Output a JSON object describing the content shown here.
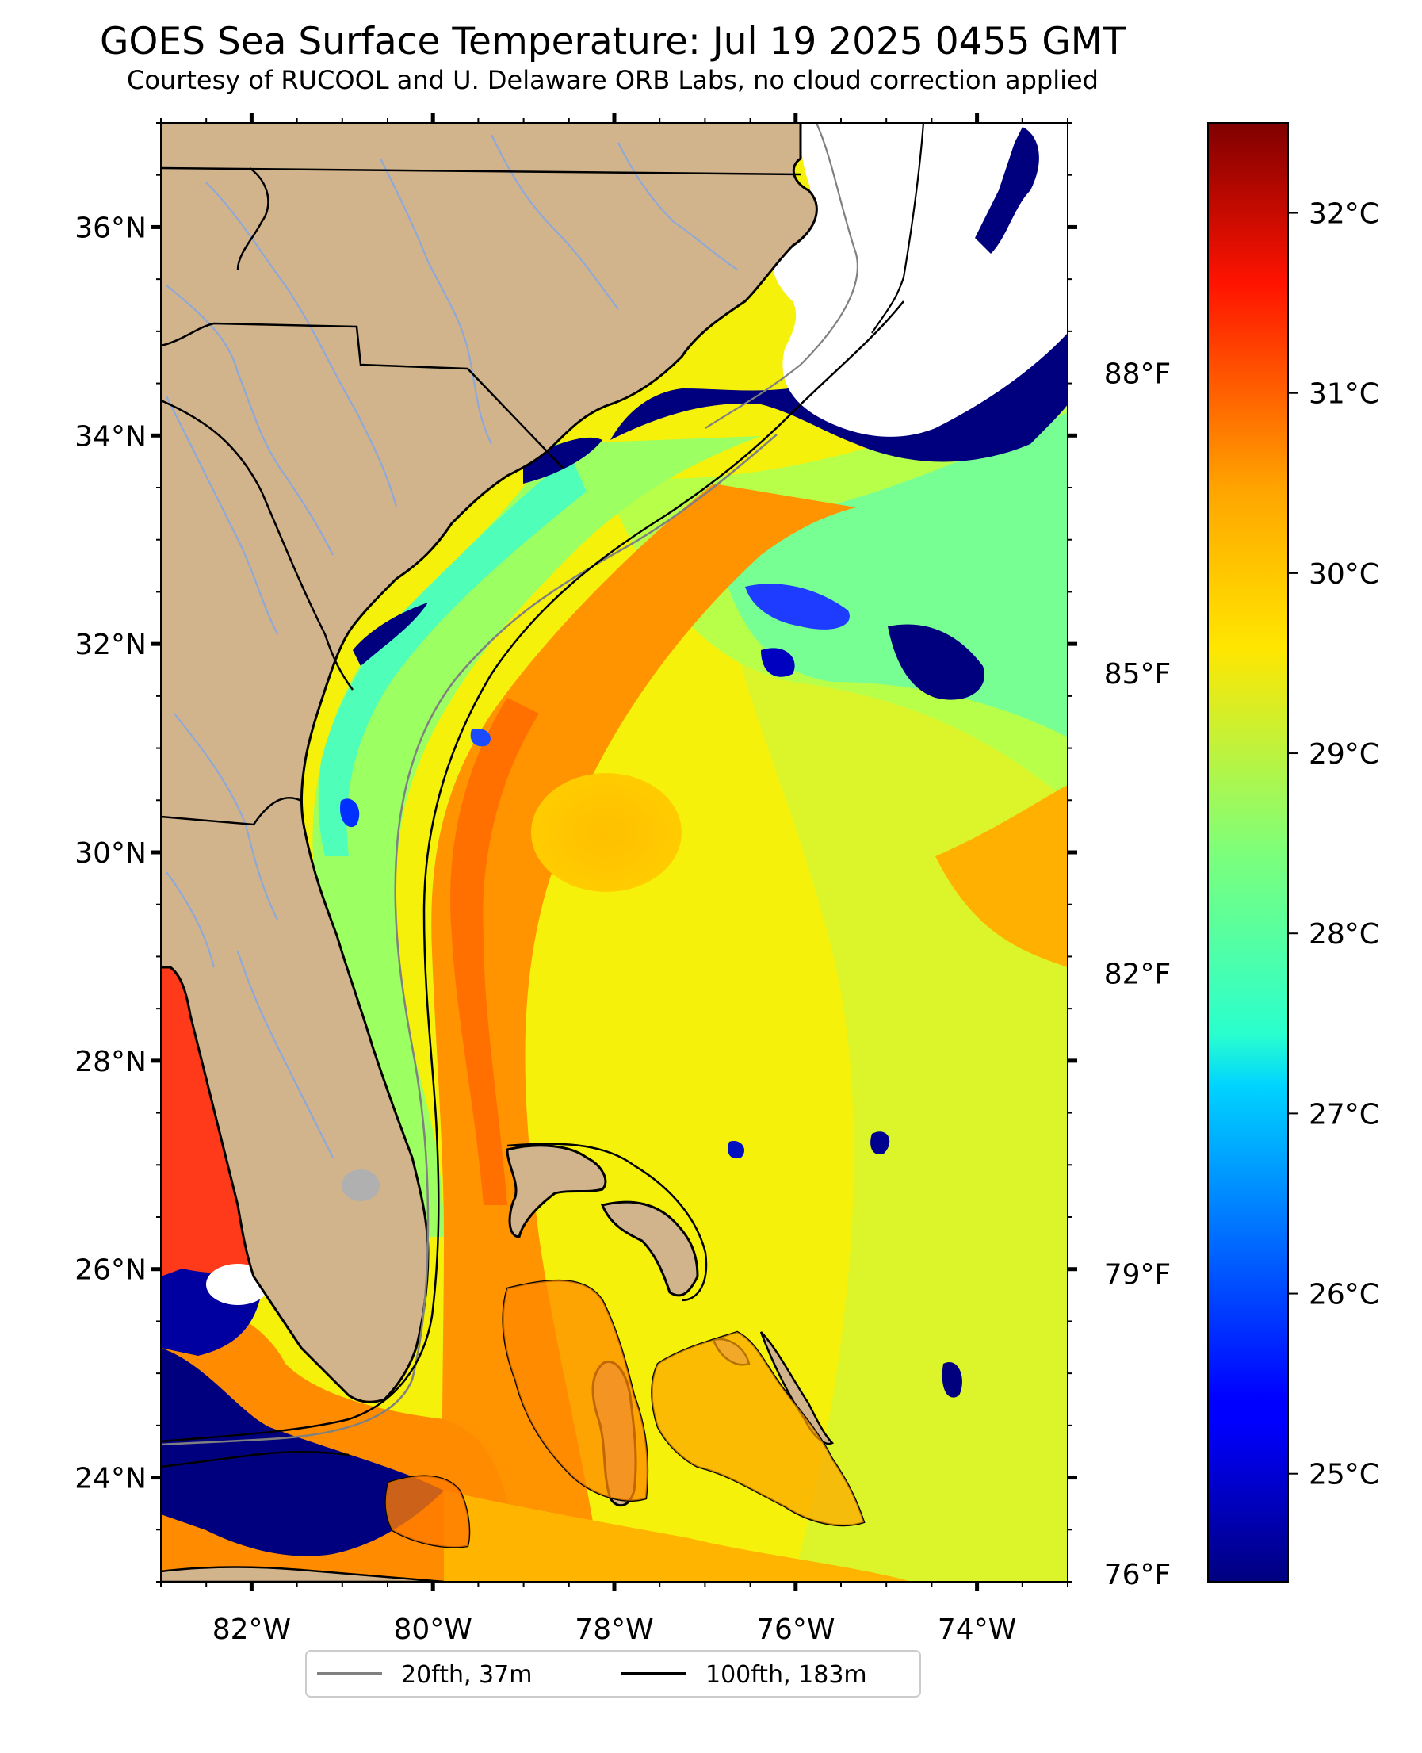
{
  "title": "GOES Sea Surface Temperature: Jul 19 2025 0455 GMT",
  "subtitle": "Courtesy of RUCOOL and U. Delaware ORB Labs, no cloud correction applied",
  "map": {
    "lon_range": [
      -83,
      -73
    ],
    "lat_range": [
      23,
      37
    ],
    "lon_ticks": [
      {
        "value": -82,
        "label": "82°W"
      },
      {
        "value": -80,
        "label": "80°W"
      },
      {
        "value": -78,
        "label": "78°W"
      },
      {
        "value": -76,
        "label": "76°W"
      },
      {
        "value": -74,
        "label": "74°W"
      }
    ],
    "lat_ticks": [
      {
        "value": 24,
        "label": "24°N"
      },
      {
        "value": 26,
        "label": "26°N"
      },
      {
        "value": 28,
        "label": "28°N"
      },
      {
        "value": 30,
        "label": "30°N"
      },
      {
        "value": 32,
        "label": "32°N"
      },
      {
        "value": 34,
        "label": "34°N"
      },
      {
        "value": 36,
        "label": "36°N"
      }
    ],
    "land_color": "#d2b48c",
    "cloud_color": "#ffffff"
  },
  "colorbar": {
    "colormap": "jet",
    "range_c": [
      24.4,
      32.5
    ],
    "celsius_ticks": [
      {
        "value": 25,
        "label": "25°C"
      },
      {
        "value": 26,
        "label": "26°C"
      },
      {
        "value": 27,
        "label": "27°C"
      },
      {
        "value": 28,
        "label": "28°C"
      },
      {
        "value": 29,
        "label": "29°C"
      },
      {
        "value": 30,
        "label": "30°C"
      },
      {
        "value": 31,
        "label": "31°C"
      },
      {
        "value": 32,
        "label": "32°C"
      }
    ],
    "fahrenheit_ticks": [
      {
        "value": 76,
        "label": "76°F"
      },
      {
        "value": 79,
        "label": "79°F"
      },
      {
        "value": 82,
        "label": "82°F"
      },
      {
        "value": 85,
        "label": "85°F"
      },
      {
        "value": 88,
        "label": "88°F"
      }
    ]
  },
  "legend": {
    "items": [
      {
        "label": "20fth, 37m",
        "color": "#808080"
      },
      {
        "label": "100fth, 183m",
        "color": "#000000"
      }
    ]
  }
}
